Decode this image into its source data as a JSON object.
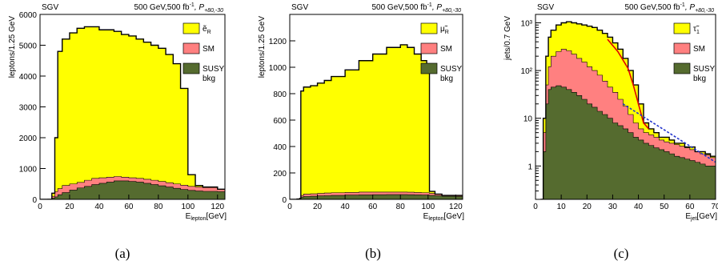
{
  "header": {
    "left": "SGV",
    "right_prefix": "500 GeV,500 fb",
    "right_exp": "-1",
    "right_pol": ", P",
    "right_pol_sub": "+80,-30"
  },
  "colors": {
    "signal": "#ffff00",
    "sm": "#ff8080",
    "bkg": "#556b2f",
    "fit_red": "#e00000",
    "fit_blue": "#2233cc"
  },
  "chart_data": [
    {
      "type": "area",
      "panel_caption": "(a)",
      "ylabel": "leptons/1.25 GeV",
      "xlabel_main": "E",
      "xlabel_sub": "lepton",
      "xlabel_unit": "[GeV]",
      "xlim": [
        0,
        125
      ],
      "ylim": [
        0,
        6000
      ],
      "xticks": [
        "0",
        "20",
        "40",
        "60",
        "80",
        "100",
        "120"
      ],
      "yticks": [
        "0",
        "1000",
        "2000",
        "3000",
        "4000",
        "5000",
        "6000"
      ],
      "legend": [
        {
          "label": "ẽ",
          "sub": "R",
          "key": "signal"
        },
        {
          "label": "SM",
          "sub": "",
          "key": "sm"
        },
        {
          "label": "SUSY",
          "label2": "bkg",
          "sub": "",
          "key": "bkg"
        }
      ],
      "x": [
        0,
        5,
        8,
        10,
        12,
        15,
        20,
        25,
        30,
        35,
        40,
        45,
        50,
        55,
        60,
        65,
        70,
        75,
        80,
        85,
        90,
        95,
        100,
        105,
        110,
        120,
        125
      ],
      "total": [
        0,
        0,
        200,
        2000,
        4800,
        5200,
        5400,
        5550,
        5600,
        5600,
        5500,
        5500,
        5450,
        5350,
        5300,
        5200,
        5100,
        5000,
        4900,
        4700,
        4400,
        3600,
        800,
        450,
        400,
        330,
        330
      ],
      "sm": [
        0,
        10,
        100,
        250,
        350,
        450,
        500,
        550,
        620,
        680,
        700,
        720,
        740,
        720,
        700,
        680,
        650,
        620,
        580,
        540,
        500,
        460,
        420,
        400,
        380,
        330,
        320
      ],
      "bkg": [
        0,
        5,
        40,
        80,
        150,
        220,
        300,
        370,
        420,
        480,
        520,
        560,
        600,
        600,
        580,
        560,
        520,
        480,
        440,
        400,
        360,
        320,
        290,
        270,
        260,
        250,
        240
      ]
    },
    {
      "type": "area",
      "panel_caption": "(b)",
      "ylabel": "leptons/1.25 GeV",
      "xlabel_main": "E",
      "xlabel_sub": "lepton",
      "xlabel_unit": "[GeV]",
      "xlim": [
        0,
        125
      ],
      "ylim": [
        0,
        1400
      ],
      "xticks": [
        "0",
        "20",
        "40",
        "60",
        "80",
        "100",
        "120"
      ],
      "yticks": [
        "0",
        "200",
        "400",
        "600",
        "800",
        "1000",
        "1200"
      ],
      "legend": [
        {
          "label": "μ̃",
          "sub": "R",
          "key": "signal"
        },
        {
          "label": "SM",
          "sub": "",
          "key": "sm"
        },
        {
          "label": "SUSY",
          "label2": "bkg",
          "sub": "",
          "key": "bkg"
        }
      ],
      "x": [
        0,
        5,
        7,
        8,
        10,
        15,
        20,
        25,
        30,
        40,
        50,
        60,
        70,
        80,
        85,
        90,
        95,
        99,
        101,
        105,
        110,
        120,
        125
      ],
      "total": [
        0,
        0,
        0,
        820,
        850,
        860,
        880,
        900,
        930,
        980,
        1050,
        1100,
        1150,
        1170,
        1150,
        1100,
        1050,
        1000,
        60,
        40,
        30,
        30,
        25
      ],
      "sm": [
        0,
        5,
        10,
        30,
        40,
        42,
        45,
        48,
        50,
        52,
        55,
        55,
        55,
        55,
        54,
        52,
        50,
        50,
        45,
        40,
        30,
        28,
        25
      ],
      "bkg": [
        0,
        2,
        5,
        18,
        22,
        24,
        26,
        28,
        30,
        32,
        34,
        35,
        36,
        36,
        35,
        34,
        33,
        32,
        30,
        28,
        24,
        22,
        20
      ]
    },
    {
      "type": "area",
      "panel_caption": "(c)",
      "ylabel": "jets/0.7 GeV",
      "xlabel_main": "E",
      "xlabel_sub": "jet",
      "xlabel_unit": "[GeV]",
      "xlim": [
        0,
        70
      ],
      "ylim": [
        0.2,
        1500
      ],
      "log_y": true,
      "xticks": [
        "0",
        "10",
        "20",
        "30",
        "40",
        "50",
        "60",
        "70"
      ],
      "yticks": [
        "1",
        "10",
        "10²",
        "10³"
      ],
      "legend": [
        {
          "label": "τ̃",
          "sub": "1",
          "key": "signal"
        },
        {
          "label": "SM",
          "sub": "",
          "key": "sm"
        },
        {
          "label": "SUSY",
          "label2": "bkg",
          "sub": "",
          "key": "bkg"
        }
      ],
      "x": [
        2,
        3,
        4,
        5,
        6,
        8,
        10,
        12,
        14,
        16,
        18,
        20,
        22,
        24,
        26,
        28,
        30,
        32,
        34,
        36,
        38,
        40,
        42,
        44,
        46,
        48,
        50,
        52,
        54,
        56,
        58,
        60,
        62,
        64,
        66,
        68,
        70
      ],
      "total": [
        0.2,
        10,
        200,
        500,
        700,
        900,
        1000,
        1050,
        1000,
        950,
        900,
        850,
        800,
        700,
        600,
        500,
        380,
        280,
        180,
        100,
        50,
        20,
        8,
        6,
        5,
        4,
        4,
        3.5,
        3,
        3,
        2.5,
        2.5,
        2,
        2,
        1.8,
        1.6,
        1.5
      ],
      "sm": [
        0.2,
        5,
        50,
        120,
        200,
        250,
        280,
        260,
        220,
        180,
        150,
        120,
        100,
        80,
        60,
        45,
        35,
        25,
        18,
        12,
        8,
        6,
        5,
        4.5,
        4,
        3.5,
        3.2,
        3,
        2.8,
        2.6,
        2.4,
        2.2,
        2,
        1.8,
        1.7,
        1.5,
        1.4
      ],
      "bkg": [
        0.2,
        2,
        20,
        40,
        45,
        48,
        45,
        40,
        35,
        30,
        25,
        20,
        17,
        14,
        12,
        10,
        8,
        7,
        6,
        5,
        4,
        3.5,
        3,
        2.7,
        2.4,
        2.2,
        2,
        1.8,
        1.6,
        1.5,
        1.4,
        1.3,
        1.2,
        1.1,
        1,
        1,
        1
      ],
      "fit_red": {
        "x": [
          28,
          32,
          36,
          38,
          40,
          42,
          44
        ],
        "y": [
          450,
          250,
          110,
          50,
          20,
          8,
          6
        ]
      },
      "fit_blue": {
        "x": [
          34,
          70
        ],
        "y": [
          20,
          1.2
        ]
      }
    }
  ]
}
